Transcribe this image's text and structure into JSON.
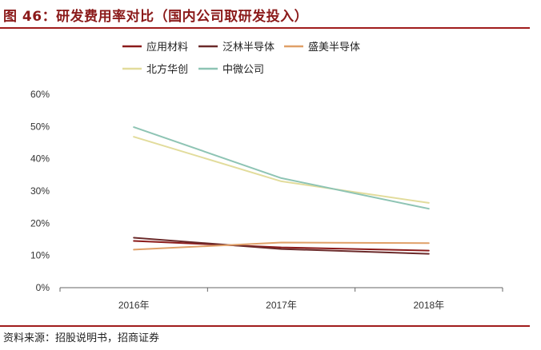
{
  "figure": {
    "title": "图 46：研发费用率对比（国内公司取研发投入）",
    "source": "资料来源：招股说明书，招商证券"
  },
  "chart_data": {
    "type": "line",
    "categories": [
      "2016年",
      "2017年",
      "2018年"
    ],
    "y_ticks": [
      "0%",
      "10%",
      "20%",
      "30%",
      "40%",
      "50%",
      "60%"
    ],
    "ylim": [
      0,
      60
    ],
    "grid": false,
    "legend_position": "top",
    "series": [
      {
        "name": "应用材料",
        "color": "#8b1a1a",
        "values": [
          14.5,
          12.5,
          11.5
        ]
      },
      {
        "name": "泛林半导体",
        "color": "#6b2a2a",
        "values": [
          15.5,
          12.0,
          10.5
        ]
      },
      {
        "name": "盛美半导体",
        "color": "#e0a068",
        "values": [
          11.8,
          14.0,
          13.8
        ]
      },
      {
        "name": "北方华创",
        "color": "#e2dc9c",
        "values": [
          46.8,
          33.0,
          26.3
        ]
      },
      {
        "name": "中微公司",
        "color": "#8ec4b4",
        "values": [
          49.8,
          34.0,
          24.5
        ]
      }
    ]
  }
}
